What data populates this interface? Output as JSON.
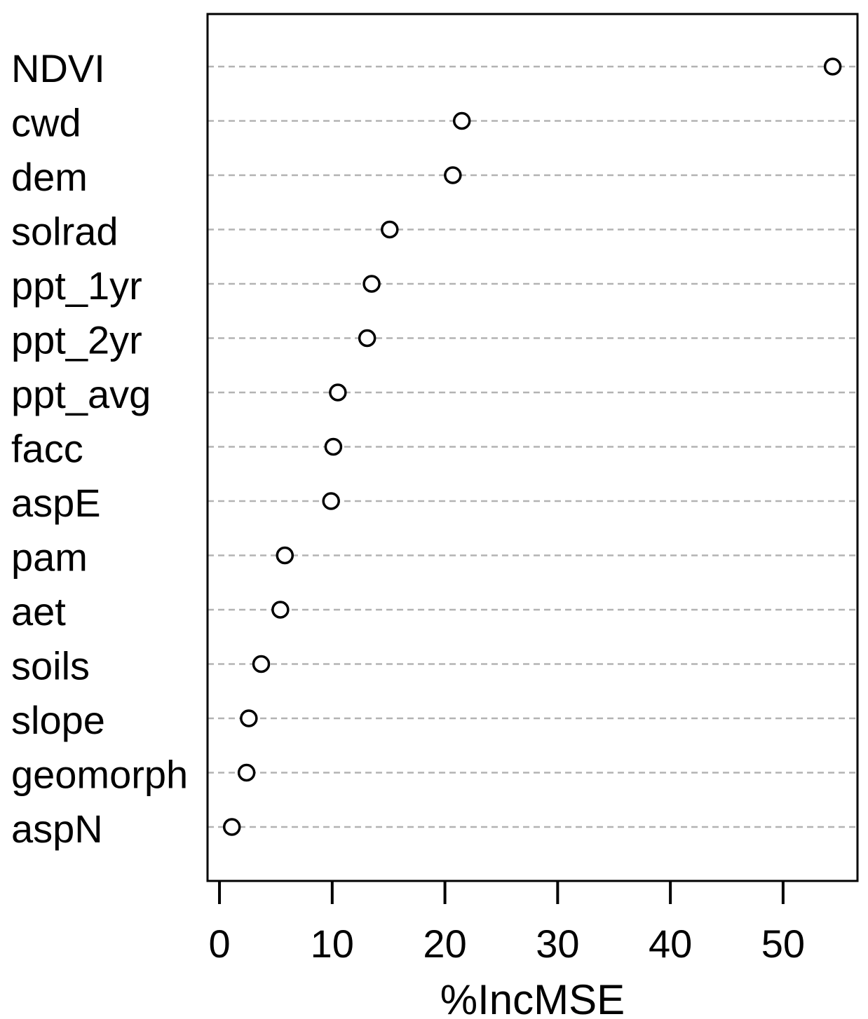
{
  "chart_data": {
    "type": "scatter",
    "subtype": "dotchart-variable-importance",
    "title": "",
    "xlabel": "%IncMSE",
    "ylabel": "",
    "categories": [
      "NDVI",
      "cwd",
      "dem",
      "solrad",
      "ppt_1yr",
      "ppt_2yr",
      "ppt_avg",
      "facc",
      "aspE",
      "pam",
      "aet",
      "soils",
      "slope",
      "geomorph",
      "aspN"
    ],
    "values": [
      54.4,
      21.5,
      20.7,
      15.1,
      13.5,
      13.1,
      10.5,
      10.1,
      9.9,
      5.8,
      5.4,
      3.7,
      2.6,
      2.4,
      1.1
    ],
    "xticks": [
      0,
      10,
      20,
      30,
      40,
      50
    ],
    "xtick_labels": [
      "0",
      "10",
      "20",
      "30",
      "40",
      "50"
    ],
    "xlim": [
      -1.06,
      56.6
    ],
    "grid": "horizontal-dashed",
    "legend": "none",
    "colors": {
      "point_stroke": "#000000",
      "point_fill": "#ffffff",
      "gridline": "#b3b3b3",
      "frame": "#000000",
      "text": "#000000",
      "background": "#ffffff"
    }
  }
}
